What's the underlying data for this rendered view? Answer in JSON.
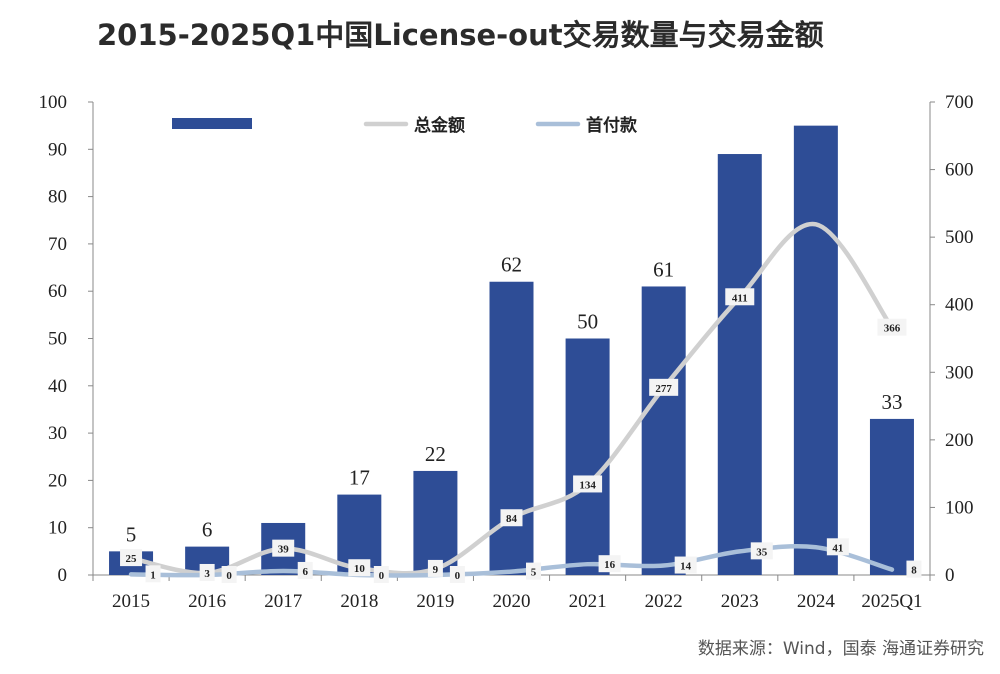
{
  "title": "2015-2025Q1中国License-out交易数量与交易金额",
  "source": "数据来源：Wind，国泰 海通证券研究",
  "chart_data": {
    "type": "bar",
    "categories": [
      "2015",
      "2016",
      "2017",
      "2018",
      "2019",
      "2020",
      "2021",
      "2022",
      "2023",
      "2024",
      "2025Q1"
    ],
    "bar_labels_shown": [
      "5",
      "6",
      "",
      "17",
      "22",
      "62",
      "50",
      "61",
      "",
      "",
      "33"
    ],
    "ylim_left": [
      0,
      100
    ],
    "ylim_right": [
      0,
      700
    ],
    "left_ticks": [
      "0",
      "10",
      "20",
      "30",
      "40",
      "50",
      "60",
      "70",
      "80",
      "90",
      "100"
    ],
    "right_ticks": [
      "0",
      "100",
      "200",
      "300",
      "400",
      "500",
      "600",
      "700"
    ],
    "series": [
      {
        "name": "",
        "type": "bar",
        "axis": "left",
        "color": "#2e4d96",
        "values": [
          5,
          6,
          11,
          17,
          22,
          62,
          50,
          61,
          89,
          95,
          33
        ]
      },
      {
        "name": "总金额",
        "type": "line",
        "axis": "right",
        "color": "#d0d0d0",
        "values": [
          25,
          3,
          39,
          10,
          9,
          84,
          134,
          277,
          411,
          519,
          366
        ],
        "labels_shown": [
          "25",
          "3",
          "39",
          "10",
          "9",
          "84",
          "134",
          "277",
          "411",
          "",
          "366"
        ]
      },
      {
        "name": "首付款",
        "type": "line",
        "axis": "right",
        "color": "#a9bfd9",
        "values": [
          1,
          0,
          6,
          0,
          0,
          5,
          16,
          14,
          35,
          41,
          8
        ],
        "labels_shown": [
          "1",
          "0",
          "6",
          "0",
          "0",
          "5",
          "16",
          "14",
          "35",
          "41",
          "8"
        ]
      }
    ],
    "legend_position": "top",
    "grid": false
  }
}
